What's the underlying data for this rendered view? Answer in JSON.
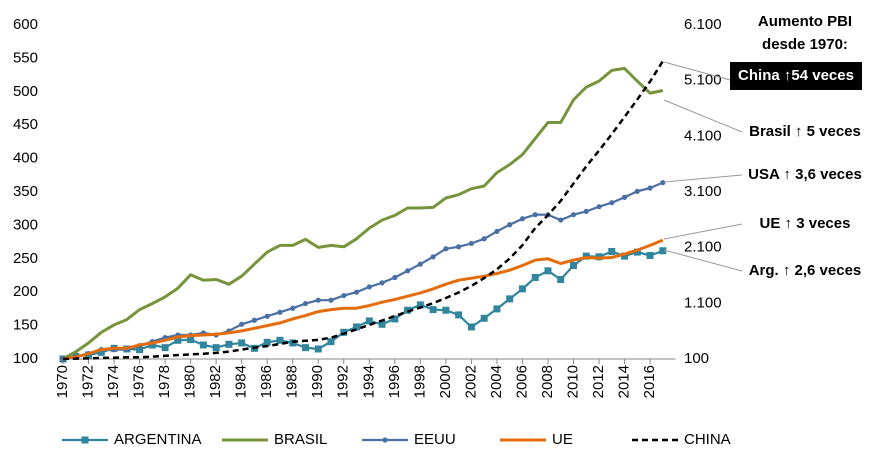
{
  "chart_data": {
    "type": "line",
    "x": [
      1970,
      1971,
      1972,
      1973,
      1974,
      1975,
      1976,
      1977,
      1978,
      1979,
      1980,
      1981,
      1982,
      1983,
      1984,
      1985,
      1986,
      1987,
      1988,
      1989,
      1990,
      1991,
      1992,
      1993,
      1994,
      1995,
      1996,
      1997,
      1998,
      1999,
      2000,
      2001,
      2002,
      2003,
      2004,
      2005,
      2006,
      2007,
      2008,
      2009,
      2010,
      2011,
      2012,
      2013,
      2014,
      2015,
      2016,
      2017
    ],
    "xlim": [
      1970,
      2018
    ],
    "xticks": [
      1970,
      1972,
      1974,
      1976,
      1978,
      1980,
      1982,
      1984,
      1986,
      1988,
      1990,
      1992,
      1994,
      1996,
      1998,
      2000,
      2002,
      2004,
      2006,
      2008,
      2010,
      2012,
      2014,
      2016
    ],
    "ylim": [
      100,
      600
    ],
    "yticks": [
      100,
      150,
      200,
      250,
      300,
      350,
      400,
      450,
      500,
      550,
      600
    ],
    "y2lim": [
      100,
      6100
    ],
    "y2ticks": [
      100,
      {
        "value": 1100,
        "label": "1.100"
      },
      {
        "value": 2100,
        "label": "2.100"
      },
      {
        "value": 3100,
        "label": "3.100"
      },
      {
        "value": 4100,
        "label": "4.100"
      },
      {
        "value": 5100,
        "label": "5.100"
      },
      {
        "value": 6100,
        "label": "6.100"
      }
    ],
    "series": [
      {
        "name": "ARGENTINA",
        "color": "#31859c",
        "marker": "square",
        "values": [
          100,
          104,
          106,
          110,
          116,
          115,
          114,
          121,
          117,
          128,
          129,
          121,
          117,
          122,
          124,
          116,
          125,
          128,
          124,
          117,
          115,
          126,
          140,
          148,
          157,
          152,
          160,
          173,
          181,
          174,
          173,
          166,
          148,
          161,
          175,
          190,
          205,
          222,
          232,
          219,
          240,
          254,
          253,
          261,
          254,
          260,
          255,
          262
        ]
      },
      {
        "name": "BRASIL",
        "color": "#77933c",
        "values": [
          100,
          111,
          124,
          140,
          151,
          159,
          174,
          183,
          193,
          206,
          226,
          218,
          219,
          212,
          224,
          242,
          260,
          270,
          270,
          279,
          267,
          270,
          268,
          280,
          296,
          308,
          315,
          326,
          326,
          327,
          341,
          346,
          355,
          359,
          379,
          391,
          406,
          430,
          454,
          454,
          488,
          507,
          516,
          532,
          535,
          516,
          498,
          502
        ]
      },
      {
        "name": "EEUU",
        "color": "#4a6fa5",
        "marker": "circle",
        "values": [
          100,
          103,
          108,
          114,
          114,
          114,
          120,
          126,
          132,
          136,
          136,
          139,
          136,
          142,
          152,
          158,
          164,
          170,
          176,
          183,
          188,
          188,
          195,
          200,
          208,
          214,
          222,
          232,
          242,
          253,
          265,
          268,
          273,
          280,
          291,
          301,
          310,
          316,
          316,
          308,
          316,
          321,
          328,
          334,
          342,
          351,
          356,
          364
        ]
      },
      {
        "name": "UE",
        "color": "#e46c0a",
        "values": [
          100,
          103,
          108,
          114,
          116,
          116,
          121,
          124,
          128,
          133,
          135,
          136,
          137,
          139,
          142,
          146,
          150,
          154,
          160,
          165,
          171,
          174,
          176,
          176,
          180,
          185,
          189,
          194,
          199,
          205,
          212,
          218,
          221,
          224,
          228,
          233,
          240,
          248,
          250,
          243,
          248,
          252,
          251,
          252,
          257,
          263,
          270,
          278
        ]
      },
      {
        "name": "CHINA",
        "color": "#000000",
        "dash": true,
        "axis": "y2",
        "values": [
          100,
          107,
          111,
          120,
          123,
          133,
          131,
          141,
          158,
          170,
          183,
          193,
          210,
          233,
          268,
          304,
          331,
          369,
          411,
          427,
          444,
          485,
          554,
          631,
          713,
          791,
          870,
          951,
          1025,
          1103,
          1196,
          1295,
          1413,
          1554,
          1711,
          1905,
          2147,
          2451,
          2687,
          2940,
          3252,
          3562,
          3843,
          4141,
          4447,
          4762,
          5085,
          5450
        ]
      }
    ],
    "annotation_header": [
      "Aumento PBI",
      "desde 1970:"
    ],
    "annotations": [
      "China ↑54 veces",
      "Brasil ↑ 5 veces",
      "USA ↑ 3,6 veces",
      "UE ↑ 3 veces",
      "Arg. ↑ 2,6 veces"
    ]
  }
}
